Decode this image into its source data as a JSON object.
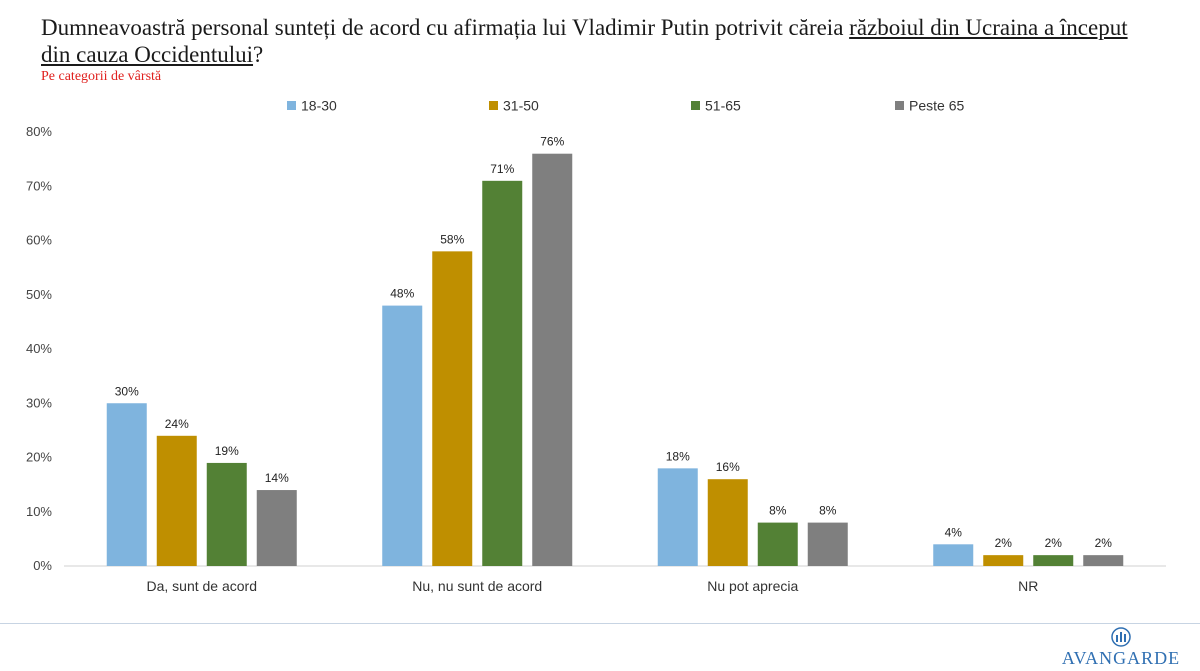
{
  "title": {
    "prefix": "Dumneavoastră personal sunteți de acord cu afirmația lui Vladimir Putin potrivit căreia ",
    "underlined": "războiul din Ucraina a început din cauza Occidentului",
    "suffix": "?"
  },
  "subtitle": "Pe categorii de vârstă",
  "brand": {
    "name": "AVANGARDE"
  },
  "chart_data": {
    "type": "bar",
    "categories": [
      "Da, sunt de acord",
      "Nu, nu sunt de acord",
      "Nu pot aprecia",
      "NR"
    ],
    "series": [
      {
        "name": "18-30",
        "color": "#7fb4de",
        "values": [
          30,
          48,
          18,
          4
        ]
      },
      {
        "name": "31-50",
        "color": "#bf8f00",
        "values": [
          24,
          58,
          16,
          2
        ]
      },
      {
        "name": "51-65",
        "color": "#538135",
        "values": [
          19,
          71,
          8,
          2
        ]
      },
      {
        "name": "Peste 65",
        "color": "#7f7f7f",
        "values": [
          14,
          76,
          8,
          2
        ]
      }
    ],
    "value_suffix": "%",
    "ylim": [
      0,
      80
    ],
    "yticks": [
      "0%",
      "10%",
      "20%",
      "30%",
      "40%",
      "50%",
      "60%",
      "70%",
      "80%"
    ],
    "grid": false,
    "legend": "top"
  }
}
